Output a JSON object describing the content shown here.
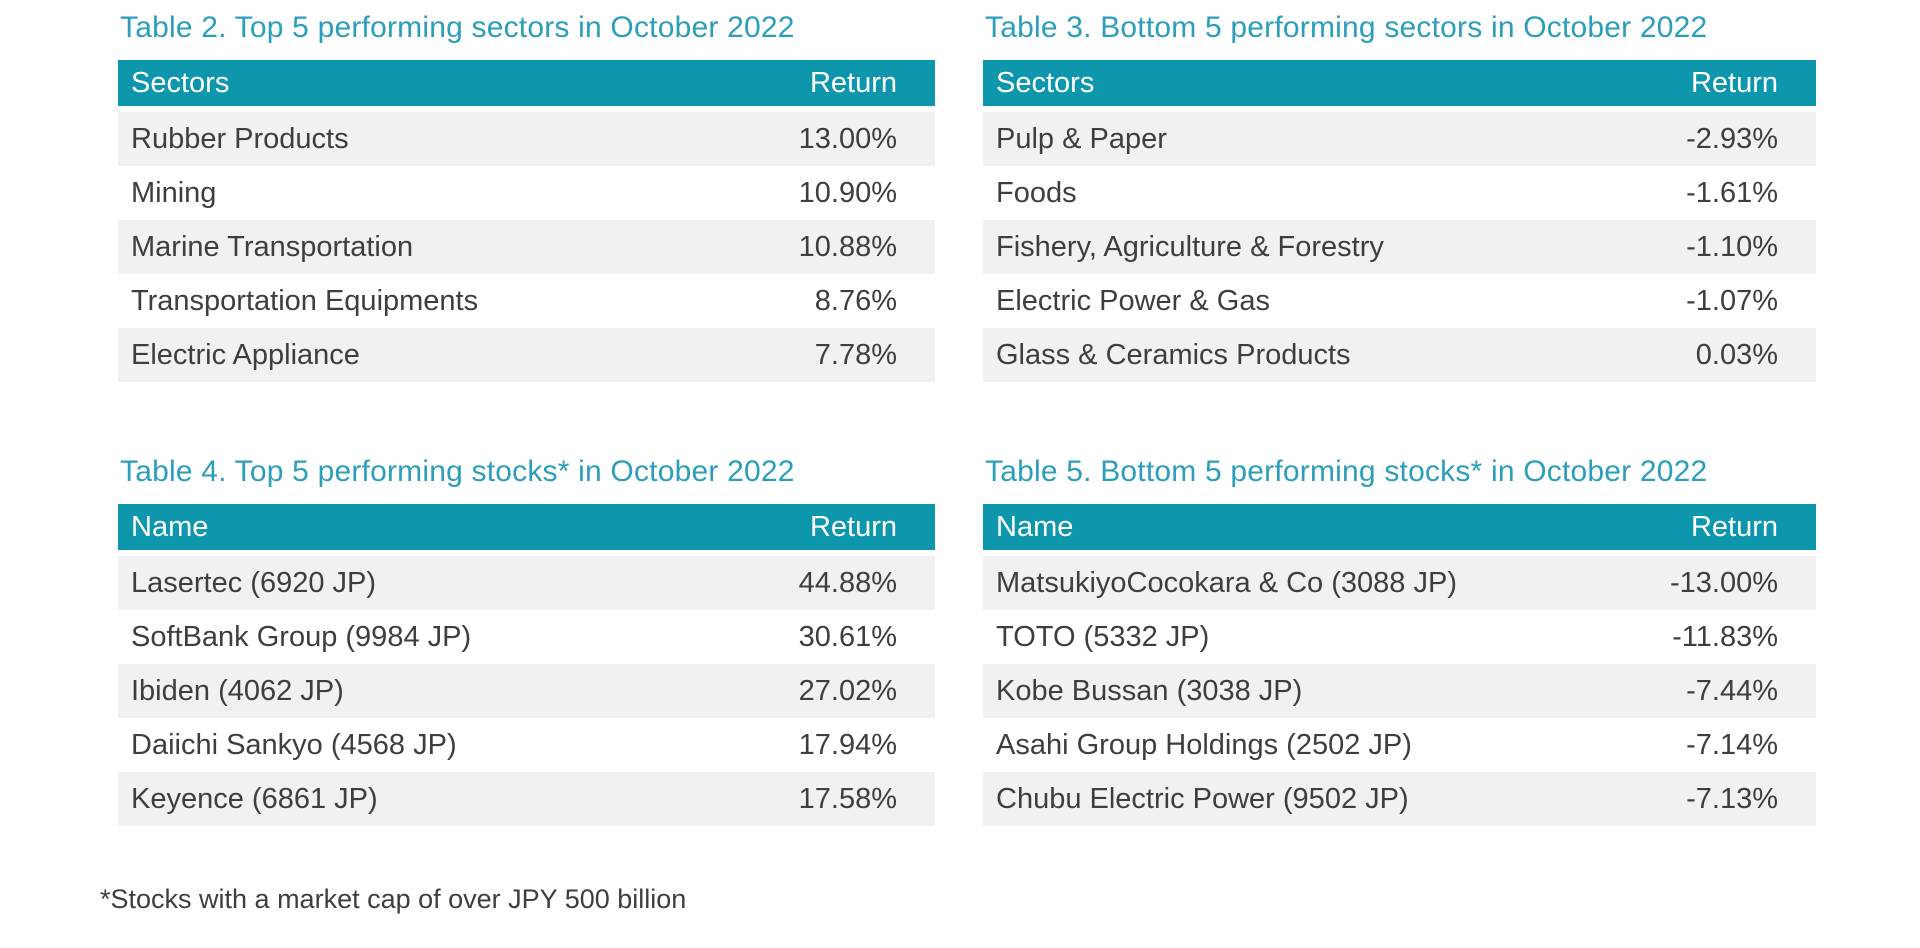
{
  "page": {
    "footnote": "*Stocks with a market cap of over JPY 500 billion"
  },
  "colors": {
    "accent_teal": "#0d96ac",
    "title_teal": "#2b9ebb",
    "row_stripe_gray": "#f1f1f1",
    "body_text": "#3e3e3d",
    "header_text": "#ffffff"
  },
  "tables": [
    {
      "id": "table-2",
      "title": "Table 2. Top 5 performing sectors in October 2022",
      "columns": [
        "Sectors",
        "Return"
      ],
      "rows": [
        {
          "name": "Rubber Products",
          "return": "13.00%"
        },
        {
          "name": "Mining",
          "return": "10.90%"
        },
        {
          "name": "Marine Transportation",
          "return": "10.88%"
        },
        {
          "name": "Transportation Equipments",
          "return": "8.76%"
        },
        {
          "name": "Electric Appliance",
          "return": "7.78%"
        }
      ]
    },
    {
      "id": "table-3",
      "title": "Table 3. Bottom 5 performing sectors in October 2022",
      "columns": [
        "Sectors",
        "Return"
      ],
      "rows": [
        {
          "name": "Pulp & Paper",
          "return": "-2.93%"
        },
        {
          "name": "Foods",
          "return": "-1.61%"
        },
        {
          "name": "Fishery, Agriculture & Forestry",
          "return": "-1.10%"
        },
        {
          "name": "Electric Power & Gas",
          "return": "-1.07%"
        },
        {
          "name": "Glass & Ceramics Products",
          "return": "0.03%"
        }
      ]
    },
    {
      "id": "table-4",
      "title": "Table 4. Top 5 performing stocks* in October 2022",
      "columns": [
        "Name",
        "Return"
      ],
      "rows": [
        {
          "name": "Lasertec (6920 JP)",
          "return": "44.88%"
        },
        {
          "name": "SoftBank Group (9984 JP)",
          "return": "30.61%"
        },
        {
          "name": "Ibiden (4062 JP)",
          "return": "27.02%"
        },
        {
          "name": "Daiichi Sankyo (4568 JP)",
          "return": "17.94%"
        },
        {
          "name": "Keyence (6861 JP)",
          "return": "17.58%"
        }
      ]
    },
    {
      "id": "table-5",
      "title": "Table 5. Bottom 5 performing stocks* in October 2022",
      "columns": [
        "Name",
        "Return"
      ],
      "rows": [
        {
          "name": "MatsukiyoCocokara & Co (3088 JP)",
          "return": "-13.00%"
        },
        {
          "name": "TOTO (5332 JP)",
          "return": "-11.83%"
        },
        {
          "name": "Kobe Bussan (3038 JP)",
          "return": "-7.44%"
        },
        {
          "name": "Asahi Group Holdings (2502 JP)",
          "return": "-7.14%"
        },
        {
          "name": "Chubu Electric Power (9502 JP)",
          "return": "-7.13%"
        }
      ]
    }
  ]
}
